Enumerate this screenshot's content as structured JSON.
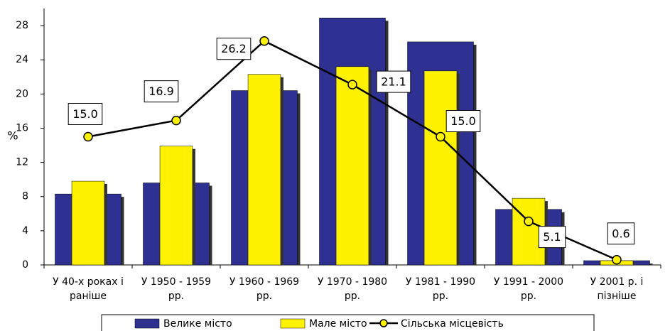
{
  "chart_data": {
    "type": "bar",
    "y_label": "%",
    "categories": [
      [
        "У 40-х роках і",
        "раніше"
      ],
      [
        "У 1950 - 1959",
        "рр."
      ],
      [
        "У 1960 - 1969",
        "рр."
      ],
      [
        "У 1970 - 1980",
        "рр."
      ],
      [
        "У 1981 - 1990",
        "рр."
      ],
      [
        "У 1991 - 2000",
        "рр."
      ],
      [
        "У 2001 р. і",
        "пізніше"
      ]
    ],
    "series": [
      {
        "name": "Велике місто",
        "type": "bar",
        "color": "#2e3192",
        "values": [
          8.3,
          9.6,
          20.4,
          28.9,
          26.1,
          6.5,
          0.5
        ]
      },
      {
        "name": "Мале місто",
        "type": "bar",
        "color": "#fff200",
        "values": [
          9.8,
          13.9,
          22.3,
          23.2,
          22.7,
          7.8,
          0.5
        ]
      },
      {
        "name": "Сільська місцевість",
        "type": "line",
        "color": "#000000",
        "marker_color": "#fff200",
        "values": [
          15,
          16.9,
          26.2,
          21.1,
          15,
          5.1,
          0.6
        ],
        "value_labels": [
          "15.0",
          "16.9",
          "26.2",
          "21.1",
          "15.0",
          "5.1",
          "0.6"
        ]
      }
    ],
    "ylim": [
      0,
      30
    ],
    "yticks": [
      0,
      4,
      8,
      12,
      16,
      20,
      24,
      28
    ],
    "grid": false,
    "legend": "bottom"
  }
}
